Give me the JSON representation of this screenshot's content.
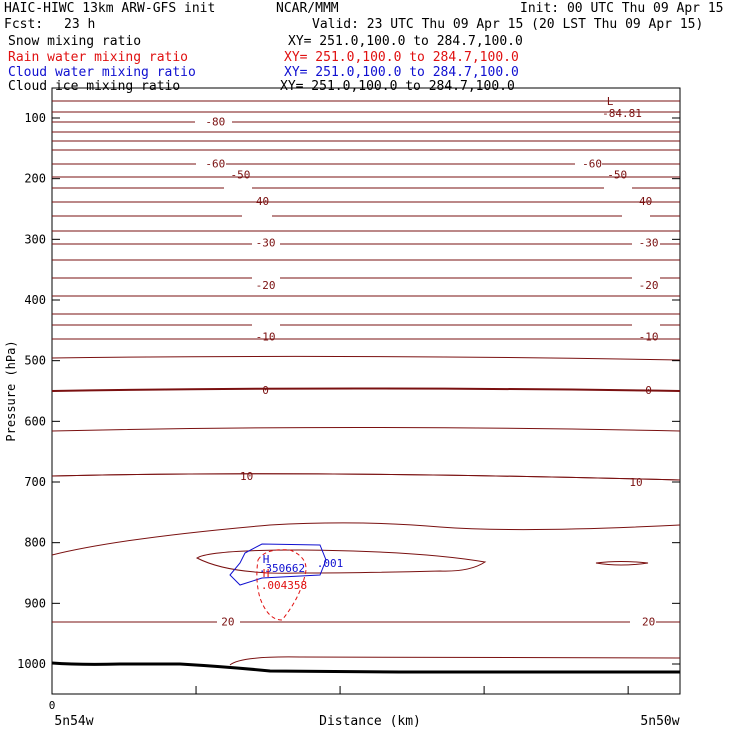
{
  "header": {
    "model": "HAIC-HIWC 13km ARW-GFS init",
    "org": "NCAR/MMM",
    "init": "Init: 00 UTC Thu 09 Apr 15",
    "fcst_label": "Fcst:",
    "fcst_value": "23 h",
    "valid": "Valid: 23 UTC Thu 09 Apr 15 (20 LST Thu 09 Apr 15)"
  },
  "fields": [
    {
      "name": "Snow mixing ratio",
      "xy": "XY= 251.0,100.0 to 284.7,100.0",
      "color": "#000000"
    },
    {
      "name": "Rain water mixing ratio",
      "xy": "XY= 251.0,100.0 to 284.7,100.0",
      "color": "#e01010"
    },
    {
      "name": "Cloud water mixing ratio",
      "xy": "XY= 251.0,100.0 to 284.7,100.0",
      "color": "#1010d0"
    },
    {
      "name": "Cloud ice mixing ratio",
      "xy": "XY= 251.0,100.0 to 284.7,100.0",
      "color": "#000000"
    }
  ],
  "chart_data": {
    "type": "line",
    "ylabel": "Pressure (hPa)",
    "xlabel": "Distance (km)",
    "y_ticks": [
      100,
      200,
      300,
      400,
      500,
      600,
      700,
      800,
      900,
      1000
    ],
    "x_tick_label": "0",
    "x_start_label": "5n54w",
    "x_end_label": "5n50w",
    "temperature_labels": [
      {
        "text": "-80",
        "p": 106,
        "x": 0.26
      },
      {
        "text": "-60",
        "p": 175,
        "x": 0.26
      },
      {
        "text": "-60",
        "p": 175,
        "x": 0.86
      },
      {
        "text": "-50",
        "p": 193,
        "x": 0.3
      },
      {
        "text": "-50",
        "p": 193,
        "x": 0.9
      },
      {
        "text": "-40",
        "p": 237,
        "x": 0.33
      },
      {
        "text": "-40",
        "p": 237,
        "x": 0.94
      },
      {
        "text": "-30",
        "p": 305,
        "x": 0.34
      },
      {
        "text": "-30",
        "p": 305,
        "x": 0.95
      },
      {
        "text": "-20",
        "p": 375,
        "x": 0.34
      },
      {
        "text": "-20",
        "p": 375,
        "x": 0.95
      },
      {
        "text": "-10",
        "p": 460,
        "x": 0.34
      },
      {
        "text": "-10",
        "p": 460,
        "x": 0.95
      },
      {
        "text": "0",
        "p": 548,
        "x": 0.34
      },
      {
        "text": "0",
        "p": 548,
        "x": 0.95
      },
      {
        "text": "10",
        "p": 690,
        "x": 0.31
      },
      {
        "text": "10",
        "p": 700,
        "x": 0.93
      },
      {
        "text": "20",
        "p": 930,
        "x": 0.28
      },
      {
        "text": "20",
        "p": 930,
        "x": 0.95
      }
    ],
    "low_marker": {
      "label": "L",
      "value": "-84.81"
    },
    "high_marker": {
      "label": "H",
      "value": ".350662"
    },
    "cloud_water_label": ".001",
    "rain_marker": {
      "label": "H",
      "value": ".004358"
    }
  }
}
